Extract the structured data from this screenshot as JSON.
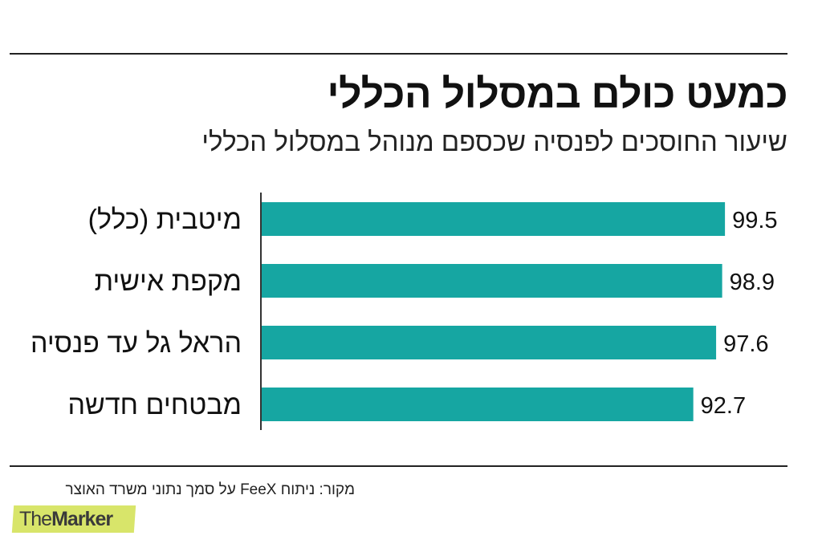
{
  "title": "כמעט כולם במסלול הכללי",
  "subtitle": "שיעור החוסכים לפנסיה שכספם מנוהל במסלול הכללי",
  "source": "מקור: ניתוח FeeX על סמך נתוני משרד האוצר",
  "logo": {
    "part1": "The",
    "part2": "Marker"
  },
  "colors": {
    "bar": "#16a6a2",
    "axis": "#333333",
    "text": "#111111",
    "logo_bg": "#d8e56a"
  },
  "chart_data": {
    "type": "bar",
    "orientation": "horizontal",
    "title": "כמעט כולם במסלול הכללי",
    "subtitle": "שיעור החוסכים לפנסיה שכספם מנוהל במסלול הכללי",
    "categories": [
      "מיטבית (כלל)",
      "מקפת אישית",
      "הראל גל עד פנסיה",
      "מבטחים חדשה"
    ],
    "values": [
      99.5,
      98.9,
      97.6,
      92.7
    ],
    "xlim": [
      0,
      100
    ],
    "xlabel": "",
    "ylabel": "",
    "grid": false,
    "legend": "none"
  }
}
